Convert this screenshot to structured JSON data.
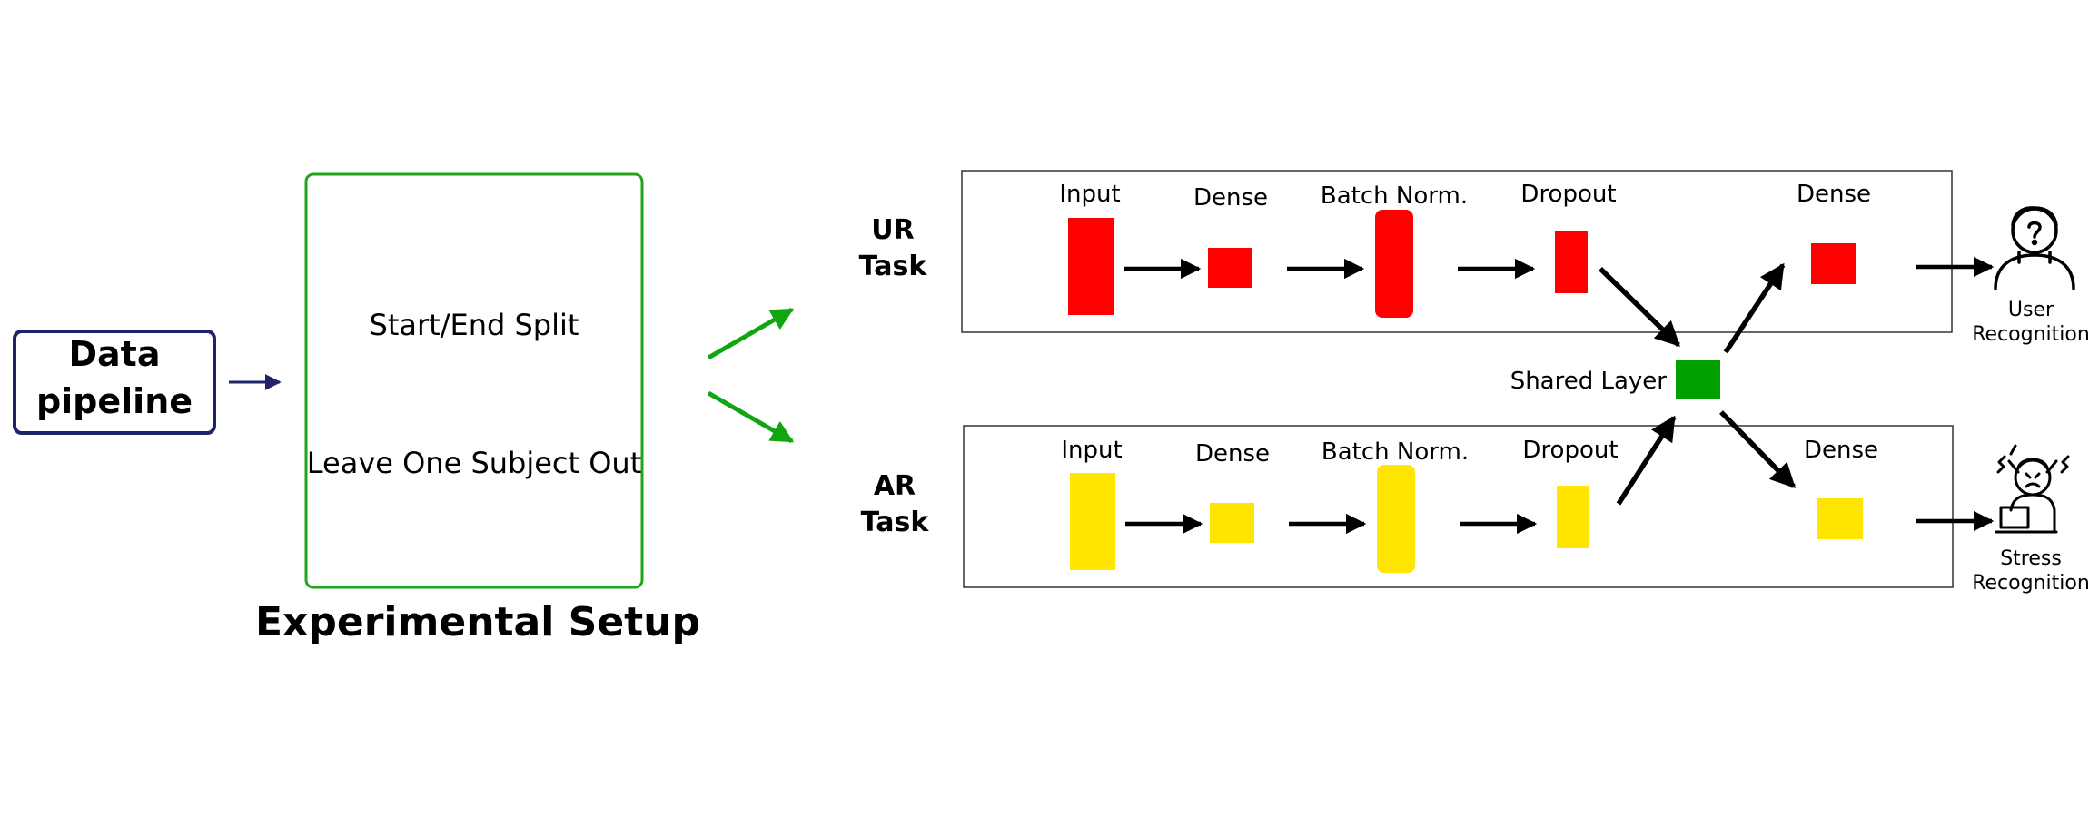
{
  "data_pipeline": {
    "line1": "Data",
    "line2": "pipeline"
  },
  "experimental_setup": {
    "title": "Experimental Setup",
    "option1": "Start/End Split",
    "option2": "Leave One Subject Out"
  },
  "ur_task": {
    "label_line1": "UR",
    "label_line2": "Task",
    "layers": [
      "Input",
      "Dense",
      "Batch Norm.",
      "Dropout",
      "Dense"
    ],
    "color": "#ff0000"
  },
  "ar_task": {
    "label_line1": "AR",
    "label_line2": "Task",
    "layers": [
      "Input",
      "Dense",
      "Batch Norm.",
      "Dropout",
      "Dense"
    ],
    "color": "#ffe500"
  },
  "shared_layer": {
    "label": "Shared Layer",
    "color": "#00a000"
  },
  "outputs": {
    "user": {
      "line1": "User",
      "line2": "Recognition",
      "icon": "confused-user-icon"
    },
    "stress": {
      "line1": "Stress",
      "line2": "Recognition",
      "icon": "stressed-person-icon"
    }
  },
  "colors": {
    "pipeline_border": "#1f2466",
    "setup_border": "#22a51a",
    "green_arrow": "#11a511",
    "arrow": "#000000"
  }
}
